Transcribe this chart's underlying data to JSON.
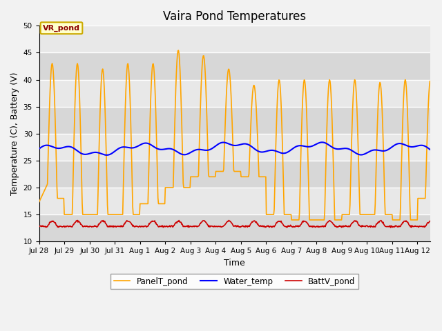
{
  "title": "Vaira Pond Temperatures",
  "xlabel": "Time",
  "ylabel": "Temperature (C), Battery (V)",
  "xlim_days": [
    0,
    15.5
  ],
  "ylim": [
    10,
    50
  ],
  "yticks": [
    10,
    15,
    20,
    25,
    30,
    35,
    40,
    45,
    50
  ],
  "xtick_labels": [
    "Jul 28",
    "Jul 29",
    "Jul 30",
    "Jul 31",
    "Aug 1",
    "Aug 2",
    "Aug 3",
    "Aug 4",
    "Aug 5",
    "Aug 6",
    "Aug 7",
    "Aug 8",
    "Aug 9",
    "Aug 10",
    "Aug 11",
    "Aug 12"
  ],
  "xtick_positions": [
    0,
    1,
    2,
    3,
    4,
    5,
    6,
    7,
    8,
    9,
    10,
    11,
    12,
    13,
    14,
    15
  ],
  "water_temp_color": "#0000ff",
  "panel_temp_color": "#ffa500",
  "batt_color": "#cc0000",
  "legend_labels": [
    "Water_temp",
    "PanelT_pond",
    "BattV_pond"
  ],
  "annotation_text": "VR_pond",
  "background_color": "#e8e8e8",
  "axes_bg_color": "#dcdcdc",
  "grid_color": "#ffffff",
  "title_fontsize": 12,
  "axis_fontsize": 9,
  "tick_fontsize": 7.5,
  "day_peaks": [
    43,
    43,
    42,
    43,
    43,
    45.5,
    44.5,
    42,
    39,
    40,
    40,
    40,
    40,
    39.5,
    40,
    40
  ],
  "day_mins": [
    18,
    15,
    15,
    15,
    17,
    20,
    22,
    23,
    22,
    15,
    14,
    14,
    15,
    15,
    14,
    18
  ],
  "water_base": 26.8,
  "water_amp1": 0.8,
  "water_amp2": 0.35,
  "water_period1": 3.5,
  "water_period2": 1.0,
  "batt_base": 12.8,
  "batt_peak": 1.0,
  "figsize": [
    6.4,
    4.8
  ],
  "dpi": 100
}
